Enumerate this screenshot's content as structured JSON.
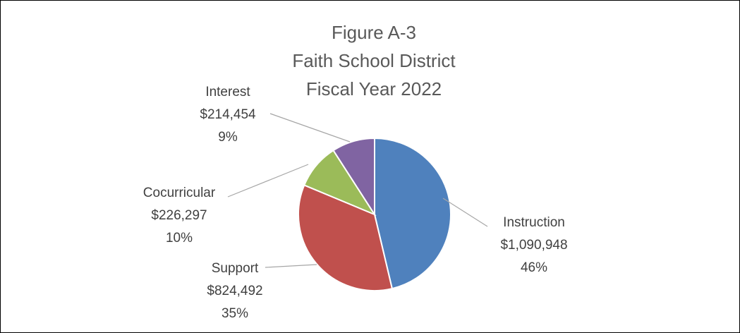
{
  "chart_data": {
    "type": "pie",
    "title_lines": [
      "Figure A-3",
      "Faith School District",
      "Fiscal Year 2022"
    ],
    "slices": [
      {
        "label": "Instruction",
        "value": 1090948,
        "value_text": "$1,090,948",
        "percent_text": "46%",
        "color": "#4f81bd"
      },
      {
        "label": "Support",
        "value": 824492,
        "value_text": "$824,492",
        "percent_text": "35%",
        "color": "#c0504d"
      },
      {
        "label": "Cocurricular",
        "value": 226297,
        "value_text": "$226,297",
        "percent_text": "10%",
        "color": "#9bbb59"
      },
      {
        "label": "Interest",
        "value": 214454,
        "value_text": "$214,454",
        "percent_text": "9%",
        "color": "#8064a2"
      }
    ],
    "start_angle": "12 o'clock",
    "direction": "clockwise",
    "legend": "none",
    "data_labels": "outside with leader lines"
  }
}
